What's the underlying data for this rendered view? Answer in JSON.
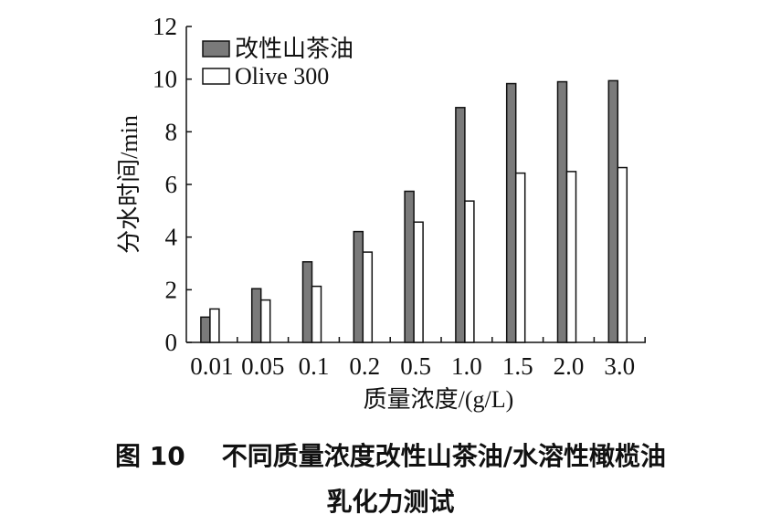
{
  "chart_data": {
    "type": "bar",
    "xlabel": "质量浓度/(g/L)",
    "ylabel": "分水时间/min",
    "categories": [
      "0.01",
      "0.05",
      "0.1",
      "0.2",
      "0.5",
      "1.0",
      "1.5",
      "2.0",
      "3.0"
    ],
    "series": [
      {
        "name": "改性山茶油",
        "color": "#7a7a7a",
        "values": [
          0.96,
          2.04,
          3.06,
          4.21,
          5.74,
          8.92,
          9.83,
          9.9,
          9.94
        ]
      },
      {
        "name": "Olive 300",
        "color": "#ffffff",
        "values": [
          1.27,
          1.61,
          2.13,
          3.43,
          4.57,
          5.37,
          6.43,
          6.49,
          6.64
        ]
      }
    ],
    "ylim": [
      0,
      12
    ],
    "yticks": [
      "0",
      "2",
      "4",
      "6",
      "8",
      "10",
      "12"
    ],
    "grid": false,
    "legend": "top-left"
  },
  "caption": {
    "figure_label": "图 10",
    "line1": "不同质量浓度改性山茶油/水溶性橄榄油",
    "line2": "乳化力测试"
  }
}
